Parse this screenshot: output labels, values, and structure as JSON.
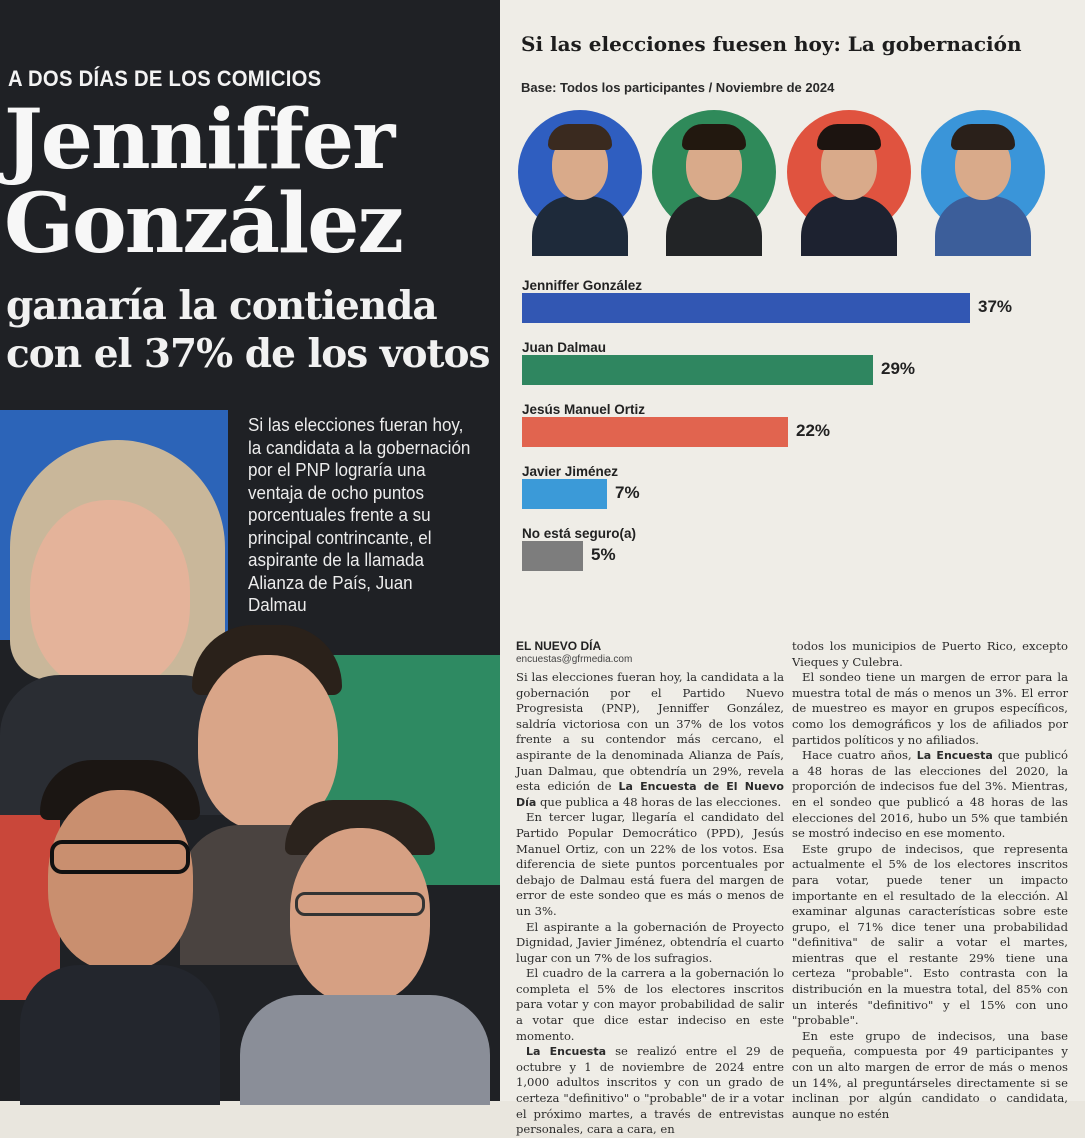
{
  "left": {
    "kicker": "A DOS DÍAS DE LOS COMICIOS",
    "headline_line1": "Jenniffer",
    "headline_line2": "González",
    "subhead_line1": "ganaría la contienda",
    "subhead_line2": "con el 37% de los votos",
    "blurb": "Si las elecciones fueran hoy, la candidata a la gobernación por el PNP lograría una ventaja de ocho puntos porcentuales frente a su principal contrincante, el aspirante de la llamada Alianza de País, Juan Dalmau"
  },
  "chart": {
    "title": "Si las elecciones fuesen hoy: La gobernación",
    "subtitle": "Base: Todos los participantes / Noviembre de 2024"
  },
  "chart_data": {
    "type": "bar",
    "orientation": "horizontal",
    "title": "Si las elecciones fuesen hoy: La gobernación",
    "subtitle": "Base: Todos los participantes / Noviembre de 2024",
    "categories": [
      "Jenniffer González",
      "Juan Dalmau",
      "Jesús Manuel Ortiz",
      "Javier Jiménez",
      "No está seguro(a)"
    ],
    "values": [
      37,
      29,
      22,
      7,
      5
    ],
    "value_labels": [
      "37%",
      "29%",
      "22%",
      "7%",
      "5%"
    ],
    "colors": [
      "#3257b3",
      "#2f8660",
      "#e1644f",
      "#3b9ad8",
      "#7d7d7d"
    ],
    "grid": false,
    "xlabel": "",
    "ylabel": ""
  },
  "avatars": [
    {
      "bg": "#2f5ec0",
      "hair": "#3a2a1f",
      "body": "#1e2a3a"
    },
    {
      "bg": "#2f8a5a",
      "hair": "#22180f",
      "body": "#222426"
    },
    {
      "bg": "#e0533f",
      "hair": "#1c1410",
      "body": "#1d2230"
    },
    {
      "bg": "#3a95d9",
      "hair": "#2a201a",
      "body": "#3c5e9a"
    }
  ],
  "article": {
    "byline": "EL NUEVO DÍA",
    "email": "encuestas@gfrmedia.com",
    "col1": [
      "Si las elecciones fueran hoy, la candidata a la gobernación por el Partido Nuevo Progresista (PNP), Jenniffer González, saldría victoriosa con un 37% de los votos frente a su contendor más cercano, el aspirante de la denominada Alianza de País, Juan Dalmau, que obtendría un 29%, revela esta edición de La Encuesta de El Nuevo Día que publica a 48 horas de las elecciones.",
      "En tercer lugar, llegaría el candidato del Partido Popular Democrático (PPD), Jesús Manuel Ortiz, con un 22% de los votos. Esa diferencia de siete puntos porcentuales por debajo de Dalmau está fuera del margen de error de este sondeo que es más o menos de un 3%.",
      "El aspirante a la gobernación de Proyecto Dignidad, Javier Jiménez, obtendría el cuarto lugar con un 7% de los sufragios.",
      "El cuadro de la carrera a la gobernación lo completa el 5% de los electores inscritos para votar y con mayor probabilidad de salir a votar que dice estar indeciso en este momento.",
      "La Encuesta se realizó entre el 29 de octubre y 1 de noviembre de 2024 entre 1,000 adultos inscritos y con un grado de certeza \"definitivo\" o \"probable\" de ir a votar el próximo martes, a través de entrevistas personales, cara a cara, en"
    ],
    "col2": [
      "todos los municipios de Puerto Rico, excepto Vieques y Culebra.",
      "El sondeo tiene un margen de error para la muestra total de más o menos un 3%. El error de muestreo es mayor en grupos específicos, como los demográficos y los de afiliados por partidos políticos y no afiliados.",
      "Hace cuatro años, La Encuesta que publicó a 48 horas de las elecciones del 2020, la proporción de indecisos fue del 3%. Mientras, en el sondeo que publicó a 48 horas de las elecciones del 2016, hubo un 5% que también se mostró indeciso en ese momento.",
      "Este grupo de indecisos, que representa actualmente el 5% de los electores inscritos para votar, puede tener un impacto importante en el resultado de la elección. Al examinar algunas características sobre este grupo, el 71% dice tener una probabilidad \"definitiva\" de salir a votar el martes, mientras que el restante 29% tiene una certeza \"probable\". Esto contrasta con la distribución en la muestra total, del 85% con un interés \"definitivo\" y el 15% con uno \"probable\".",
      "En este grupo de indecisos, una base pequeña, compuesta por 49 participantes y con un alto margen de error de más o menos un 14%, al preguntárseles directamente si se inclinan por algún candidato o candidata, aunque no estén"
    ]
  }
}
